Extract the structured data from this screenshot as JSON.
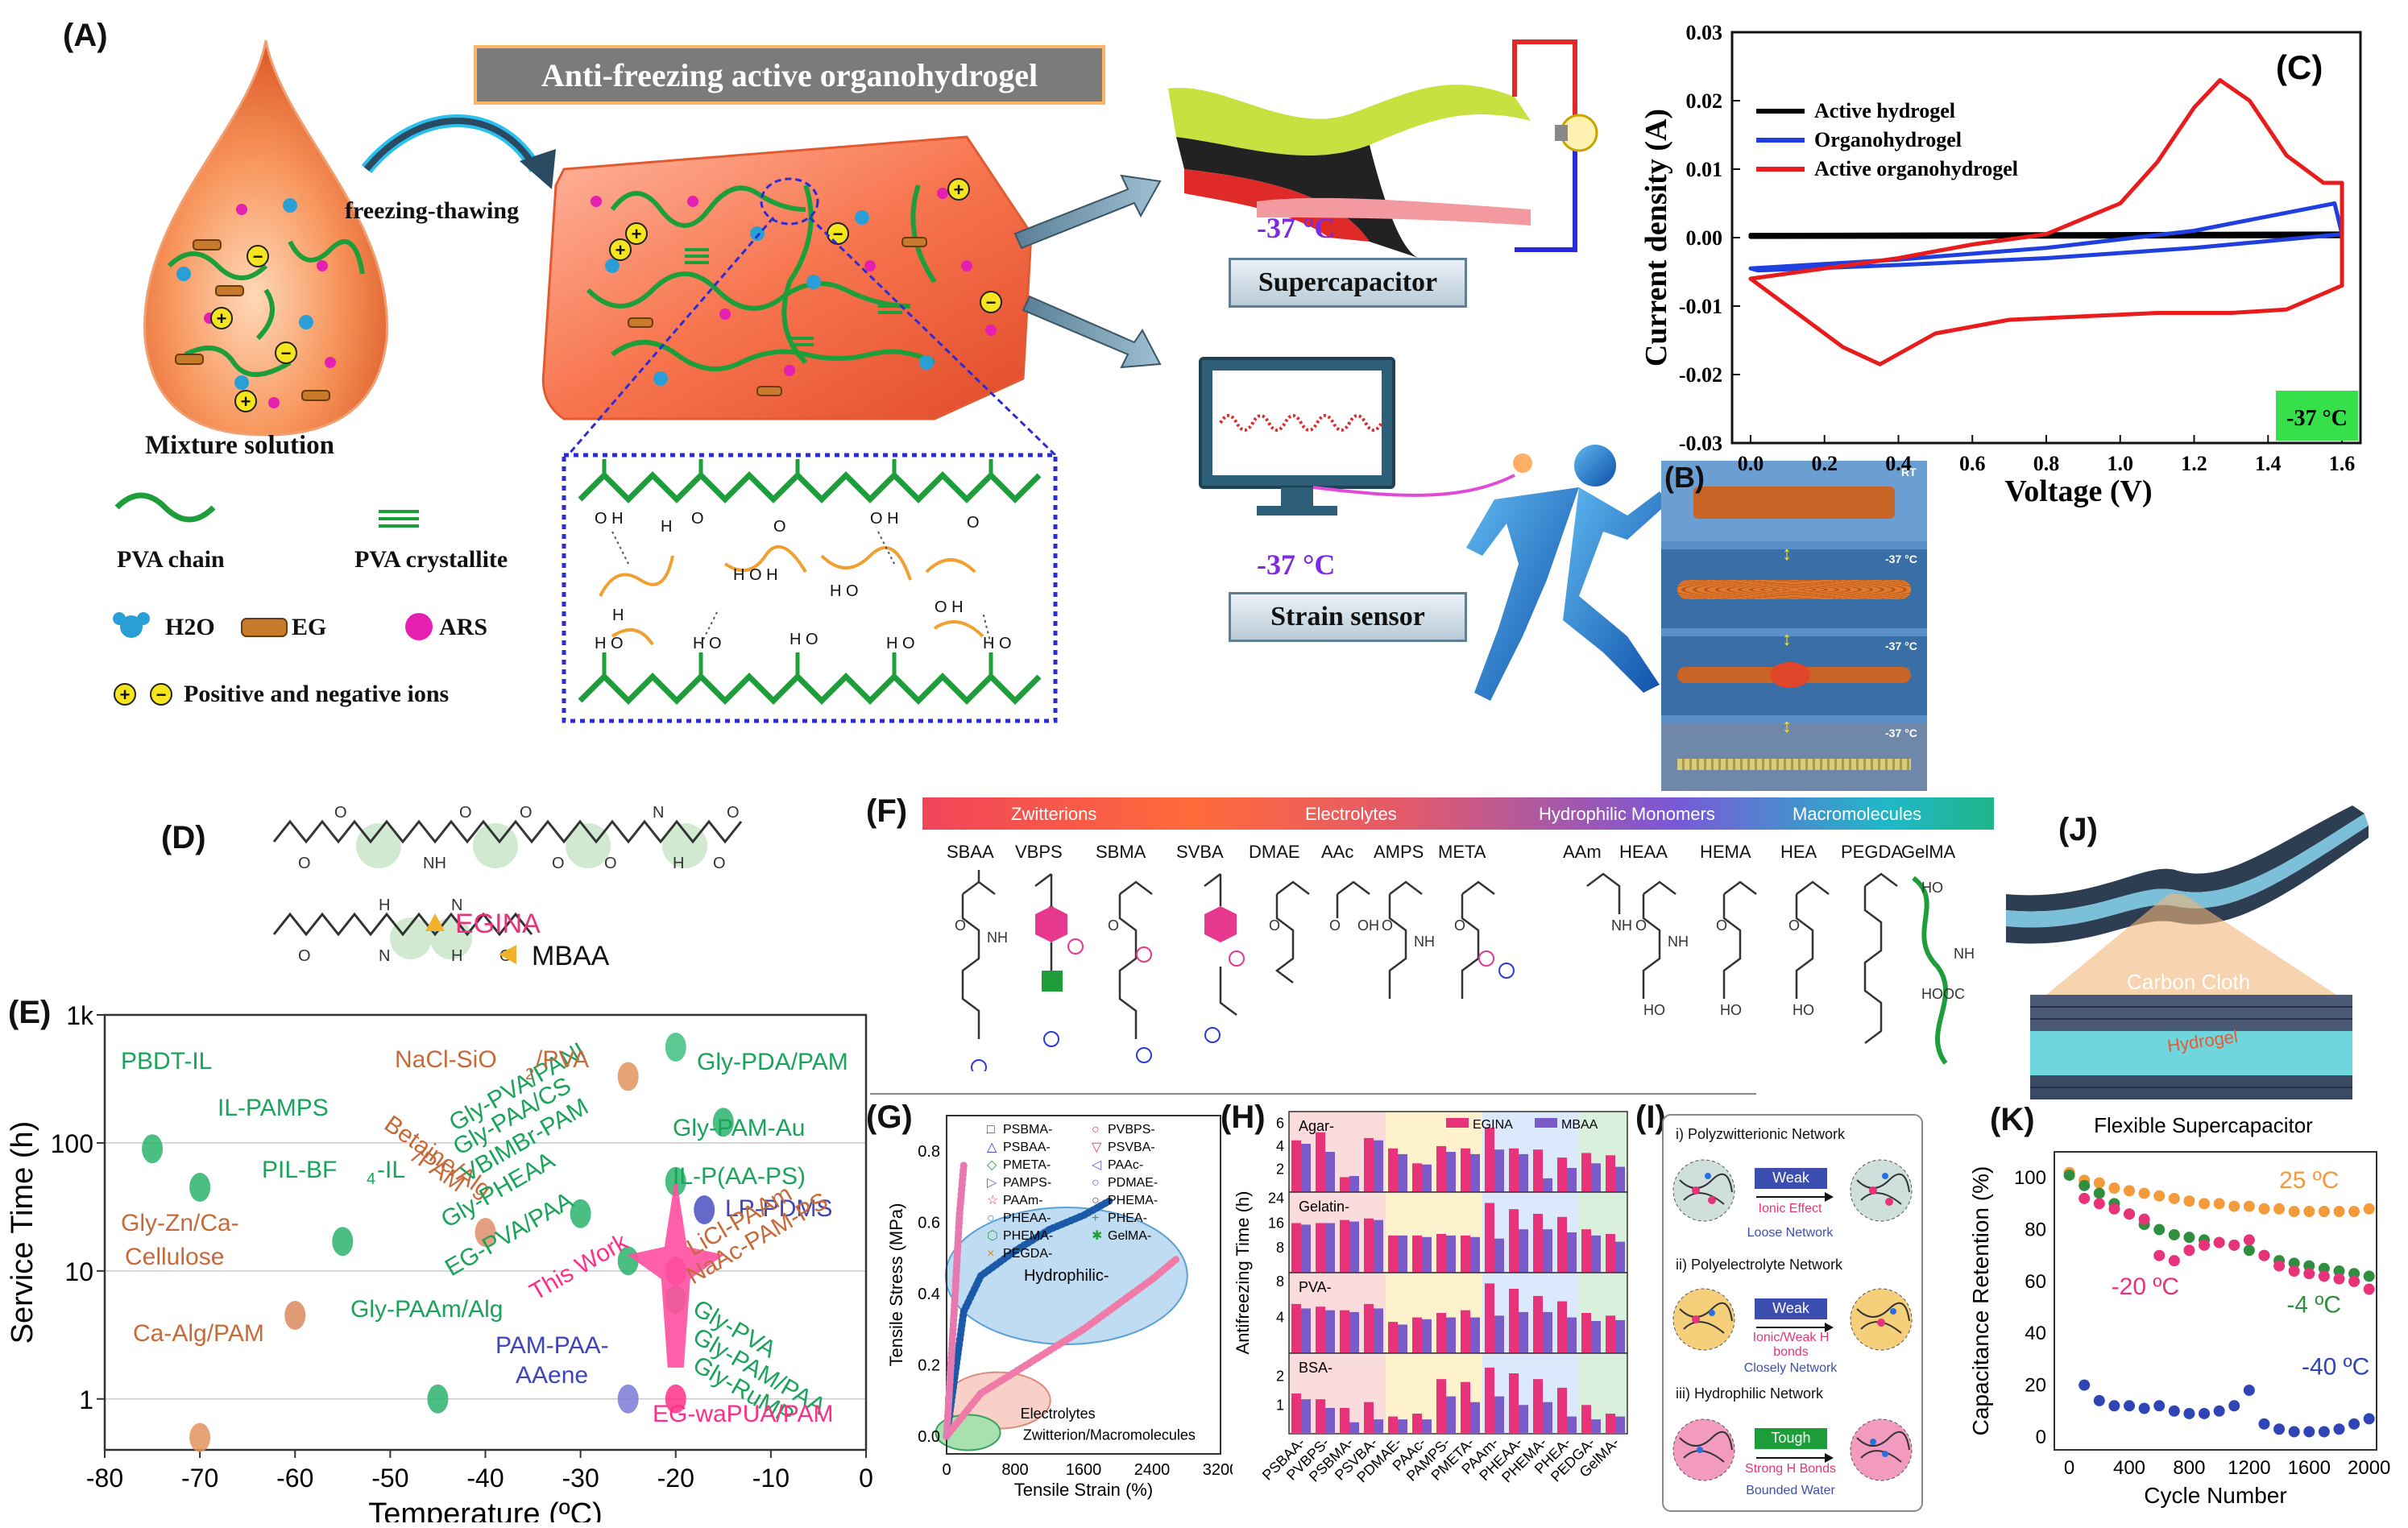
{
  "panelA": {
    "label": "(A)",
    "title": "Anti-freezing active organohydrogel",
    "arrow_text": "freezing-thawing",
    "mixture": "Mixture solution",
    "legend": {
      "pva_chain": "PVA chain",
      "pva_crystallite": "PVA crystallite",
      "h2o": "H2O",
      "eg": "EG",
      "ars": "ARS",
      "ions": "Positive and negative ions"
    },
    "temp1": "-37 °C",
    "device1": "Supercapacitor",
    "temp2": "-37 °C",
    "device2": "Strain sensor"
  },
  "panelB": {
    "label": "(B)",
    "tags": [
      "RT",
      "-37 °C",
      "-37 °C",
      "-37 °C"
    ]
  },
  "panelC": {
    "label": "(C)",
    "temp_badge": "-37 °C",
    "chart_data": {
      "type": "line",
      "xlabel": "Voltage (V)",
      "ylabel": "Current density (A)",
      "xlim": [
        -0.05,
        1.65
      ],
      "ylim": [
        -0.03,
        0.03
      ],
      "xticks": [
        "0.0",
        "0.2",
        "0.4",
        "0.6",
        "0.8",
        "1.0",
        "1.2",
        "1.4",
        "1.6"
      ],
      "yticks": [
        "0.03",
        "0.02",
        "0.01",
        "0.00",
        "-0.01",
        "-0.02",
        "-0.03"
      ],
      "legend_position": "top-left",
      "series": [
        {
          "name": "Active hydrogel",
          "color": "#000000",
          "x": [
            0,
            1.6,
            1.6,
            0
          ],
          "y": [
            0.0004,
            0.0006,
            0.0002,
            0.0001
          ]
        },
        {
          "name": "Organohydrogel",
          "color": "#1f3fe0",
          "x": [
            0,
            0.4,
            0.8,
            1.2,
            1.58,
            1.6,
            1.2,
            0.8,
            0.4,
            0.02,
            0
          ],
          "y": [
            -0.0045,
            -0.0032,
            -0.0015,
            0.001,
            0.005,
            0.0005,
            -0.0015,
            -0.003,
            -0.004,
            -0.0048,
            -0.0045
          ]
        },
        {
          "name": "Active organohydrogel",
          "color": "#e81c1c",
          "x": [
            0,
            0.2,
            0.4,
            0.6,
            0.8,
            1.0,
            1.1,
            1.2,
            1.27,
            1.35,
            1.45,
            1.55,
            1.6,
            1.6,
            1.45,
            1.3,
            1.1,
            0.9,
            0.7,
            0.5,
            0.4,
            0.35,
            0.25,
            0.1,
            0
          ],
          "y": [
            -0.006,
            -0.0045,
            -0.003,
            -0.001,
            0.0005,
            0.005,
            0.011,
            0.019,
            0.023,
            0.02,
            0.012,
            0.008,
            0.008,
            -0.007,
            -0.0105,
            -0.011,
            -0.011,
            -0.0115,
            -0.012,
            -0.014,
            -0.017,
            -0.0185,
            -0.016,
            -0.01,
            -0.006
          ]
        }
      ]
    }
  },
  "panelD": {
    "label": "(D)",
    "egina": "EGINA",
    "mbaa": "MBAA"
  },
  "panelE": {
    "label": "(E)",
    "chart_data": {
      "type": "scatter",
      "xlabel": "Temperature (ºC)",
      "ylabel": "Service Time (h)",
      "xlim": [
        -80,
        0
      ],
      "ylim": [
        0.4,
        1000
      ],
      "yscale": "log",
      "xticks": [
        "-80",
        "-70",
        "-60",
        "-50",
        "-40",
        "-30",
        "-20",
        "-10",
        "0"
      ],
      "yticks": [
        "1k",
        "100",
        "10",
        "1"
      ],
      "points": [
        {
          "label": "PBDT-IL",
          "x": -75,
          "y": 90,
          "color": "#2bb36b"
        },
        {
          "label": "IL-PAMPS",
          "x": -70,
          "y": 45,
          "color": "#2bb36b"
        },
        {
          "label": "PIL-BF4-IL",
          "x": -55,
          "y": 17,
          "color": "#2bb36b"
        },
        {
          "label": "Gly-Zn/Ca-Cellulose",
          "x": -60,
          "y": 4.5,
          "color": "#d98a5a"
        },
        {
          "label": "Ca-Alg/PAM",
          "x": -70,
          "y": 0.5,
          "color": "#e2935e"
        },
        {
          "label": "Gly-PAAm/Alg",
          "x": -45,
          "y": 1,
          "color": "#2bb36b"
        },
        {
          "label": "Betaine/Alg/PAM",
          "x": -40,
          "y": 20,
          "color": "#e08d6a"
        },
        {
          "label": "NaCl-SiO2/PVA",
          "x": -25,
          "y": 330,
          "color": "#e2935e"
        },
        {
          "label": "Gly-PDA/PAM",
          "x": -20,
          "y": 560,
          "color": "#3fbf80"
        },
        {
          "label": "Gly-PVA/PANI",
          "x": -30,
          "y": 28,
          "color": "#2bb36b"
        },
        {
          "label": "Gly-PHEAA",
          "x": -25,
          "y": 12,
          "color": "#2bb36b"
        },
        {
          "label": "EG-PVA/PAA",
          "x": -20,
          "y": 6,
          "color": "#2bb36b"
        },
        {
          "label": "Gly-PAM-Au",
          "x": -15,
          "y": 145,
          "color": "#2bb36b"
        },
        {
          "label": "IL-P(AA-PS)",
          "x": -20,
          "y": 50,
          "color": "#2bb36b"
        },
        {
          "label": "LP-PDMS",
          "x": -17,
          "y": 30,
          "color": "#4a4fbf"
        },
        {
          "label": "PAM-PAA-AAene",
          "x": -25,
          "y": 1,
          "color": "#7a7ad6"
        },
        {
          "label": "This Work",
          "x": -20,
          "y": 10,
          "color": "#ff2f88"
        },
        {
          "label": "EG-waPUA/PAM",
          "x": -20,
          "y": 1,
          "color": "#ff2f88"
        }
      ],
      "labels": [
        "PBDT-IL",
        "IL-PAMPS",
        "PIL-BF",
        "4",
        "-IL",
        "Gly-Zn/Ca-",
        "Cellulose",
        "Ca-Alg/PAM",
        "Gly-PAAm/Alg",
        "NaCl-SiO",
        "2",
        "/PVA",
        "Gly-PDA/PAM",
        "Betaine/Alg",
        "/PAM",
        "Gly-PVA/PANI",
        "Gly-PAA/CS",
        "VBIMBr-PAM",
        "Gly-PHEAA",
        "EG-PVA/PAA",
        "This Work",
        "Gly-PAM-Au",
        "IL-P(AA-PS)",
        "LP-PDMS",
        "LiCl-PAAm",
        "NaAc-PAM-PS",
        "Gly-PVA",
        "Gly-PAM/PAA",
        "Gly-RuMP",
        "PAM-PAA-",
        "AAene",
        "EG-waPUA/PAM"
      ]
    }
  },
  "panelF": {
    "label": "(F)",
    "categories": [
      "Zwitterions",
      "Electrolytes",
      "Hydrophilic Monomers",
      "Macromolecules"
    ],
    "monomers": [
      "SBAA",
      "VBPS",
      "SBMA",
      "SVBA",
      "DMAE",
      "AAc",
      "AMPS",
      "META",
      "AAm",
      "HEAA",
      "HEMA",
      "HEA",
      "PEGDA",
      "GelMA"
    ]
  },
  "panelG": {
    "label": "(G)",
    "chart_data": {
      "type": "line",
      "xlabel": "Tensile Strain (%)",
      "ylabel": "Tensile Stress (MPa)",
      "xlim": [
        0,
        3200
      ],
      "ylim": [
        -0.05,
        0.9
      ],
      "xticks": [
        "0",
        "800",
        "1600",
        "2400",
        "3200"
      ],
      "yticks": [
        "0.0",
        "0.2",
        "0.4",
        "0.6",
        "0.8"
      ],
      "legend": [
        "PSBMA-",
        "PSBAA-",
        "PMETA-",
        "PAMPS-",
        "PAAm-",
        "PHEAA-",
        "PHEMA-",
        "PEGDA-",
        "PVBPS-",
        "PSVBA-",
        "PAAc-",
        "PDMAE-",
        "PHEMA-",
        "PHEA-",
        "GelMA-"
      ],
      "regions": [
        "Hydrophilic-",
        "Electrolytes",
        "Zwitterion/Macromolecules"
      ],
      "series": [
        {
          "name": "PHEAA-",
          "color": "#1a5aa8",
          "x": [
            0,
            200,
            400,
            800,
            1200,
            1600,
            1900
          ],
          "y": [
            0,
            0.35,
            0.45,
            0.52,
            0.58,
            0.62,
            0.66
          ]
        },
        {
          "name": "PHEA-",
          "color": "#f07aa8",
          "x": [
            0,
            400,
            800,
            1200,
            1600,
            2000,
            2400,
            2700
          ],
          "y": [
            0,
            0.12,
            0.18,
            0.24,
            0.3,
            0.37,
            0.44,
            0.5
          ]
        },
        {
          "name": "PAAm-",
          "color": "#e67ab0",
          "x": [
            0,
            100,
            150,
            200
          ],
          "y": [
            0,
            0.4,
            0.62,
            0.76
          ]
        }
      ]
    }
  },
  "panelH": {
    "label": "(H)",
    "chart_data": {
      "type": "bar",
      "ylabel": "Antifreezing Time (h)",
      "legend": [
        "EGINA",
        "MBAA"
      ],
      "categories": [
        "PSBAA-",
        "PVBPS-",
        "PSBMA-",
        "PSVBA-",
        "PDMAE-",
        "PAAc-",
        "PAMPS-",
        "PMETA-",
        "PAAm-",
        "PHEAA-",
        "PHEMA-",
        "PHEA-",
        "PEDGA-",
        "GelMA-"
      ],
      "groups": [
        {
          "name": "Agar-",
          "ylim": [
            0,
            7
          ],
          "yticks": [
            "6",
            "4",
            "2"
          ],
          "egina": [
            4.5,
            5.2,
            1.3,
            4.7,
            3.8,
            2.5,
            4.0,
            3.8,
            5.6,
            3.8,
            3.7,
            3.0,
            3.4,
            3.2
          ],
          "mbaa": [
            4.2,
            3.5,
            1.4,
            4.5,
            3.3,
            2.4,
            3.5,
            3.3,
            3.7,
            3.3,
            1.2,
            2.1,
            2.5,
            2.2
          ]
        },
        {
          "name": "Gelatin-",
          "ylim": [
            0,
            26
          ],
          "yticks": [
            "24",
            "16",
            "8"
          ],
          "egina": [
            16,
            16,
            17,
            17.5,
            12,
            12,
            12.5,
            12,
            22.5,
            20.5,
            19,
            18,
            14,
            12.5
          ],
          "mbaa": [
            15.5,
            16,
            16.5,
            17,
            12,
            11.5,
            12,
            11.5,
            11,
            14,
            14,
            13,
            12,
            10
          ]
        },
        {
          "name": "PVA-",
          "ylim": [
            0,
            9
          ],
          "yticks": [
            "8",
            "4"
          ],
          "egina": [
            5.5,
            5.2,
            4.8,
            5.5,
            3.5,
            4.0,
            4.5,
            4.8,
            7.8,
            7.2,
            6.4,
            5.8,
            4.5,
            4.2
          ],
          "mbaa": [
            5.0,
            4.8,
            4.6,
            5.0,
            3.2,
            3.8,
            4.0,
            4.0,
            4.2,
            4.6,
            4.6,
            4.0,
            3.6,
            3.7
          ]
        },
        {
          "name": "BSA-",
          "ylim": [
            0,
            2.8
          ],
          "yticks": [
            "2",
            "1"
          ],
          "egina": [
            1.4,
            1.2,
            0.9,
            1.1,
            0.6,
            0.7,
            1.9,
            1.8,
            2.3,
            2.1,
            1.9,
            1.6,
            1.0,
            0.7
          ],
          "mbaa": [
            1.2,
            0.9,
            0.4,
            0.5,
            0.5,
            0.5,
            1.3,
            1.1,
            1.3,
            1.0,
            1.1,
            0.6,
            0.5,
            0.6
          ]
        }
      ]
    }
  },
  "panelI": {
    "label": "(I)",
    "net1": {
      "title": "i) Polyzwitterionic Network",
      "badge": "Weak",
      "effect": "Ionic Effect",
      "result": "Loose Network"
    },
    "net2": {
      "title": "ii) Polyelectrolyte Network",
      "badge": "Weak",
      "effect": "Ionic/Weak H",
      "effect2": "bonds",
      "result": "Closely Network"
    },
    "net3": {
      "title": "iii) Hydrophilic Network",
      "badge": "Tough",
      "effect": "Strong H Bonds",
      "result": "Bounded Water"
    }
  },
  "panelJ": {
    "label": "(J)",
    "cloth": "Carbon Cloth",
    "gel": "Hydrogel"
  },
  "panelK": {
    "label": "(K)",
    "chart_data": {
      "type": "scatter",
      "title": "Flexible Supercapacitor",
      "xlabel": "Cycle Number",
      "ylabel": "Capacitance Retention (%)",
      "xlim": [
        -100,
        2050
      ],
      "ylim": [
        -5,
        110
      ],
      "xticks": [
        "0",
        "400",
        "800",
        "1200",
        "1600",
        "2000"
      ],
      "yticks": [
        "100",
        "80",
        "60",
        "40",
        "20",
        "0"
      ],
      "series": [
        {
          "name": "25 ºC",
          "color": "#f39a3a",
          "x": [
            0,
            100,
            200,
            300,
            400,
            500,
            600,
            700,
            800,
            900,
            1000,
            1100,
            1200,
            1300,
            1400,
            1500,
            1600,
            1700,
            1800,
            1900,
            2000
          ],
          "y": [
            102,
            99,
            98,
            96,
            95,
            94,
            93,
            92,
            91,
            90,
            90,
            89,
            89,
            88,
            88,
            87,
            87,
            87,
            87,
            87,
            88
          ]
        },
        {
          "name": "-4 ºC",
          "color": "#2f8f3f",
          "x": [
            0,
            100,
            200,
            300,
            400,
            500,
            600,
            700,
            800,
            900,
            1000,
            1100,
            1200,
            1300,
            1400,
            1500,
            1600,
            1700,
            1800,
            1900,
            2000
          ],
          "y": [
            101,
            97,
            94,
            90,
            86,
            82,
            80,
            78,
            77,
            76,
            75,
            74,
            72,
            70,
            68,
            67,
            66,
            65,
            64,
            63,
            62
          ]
        },
        {
          "name": "-20 ºC",
          "color": "#e8337a",
          "x": [
            100,
            200,
            300,
            400,
            500,
            600,
            700,
            800,
            900,
            1000,
            1100,
            1200,
            1300,
            1400,
            1500,
            1600,
            1700,
            1800,
            1900,
            2000
          ],
          "y": [
            92,
            90,
            88,
            86,
            84,
            70,
            68,
            72,
            74,
            75,
            74,
            76,
            70,
            66,
            64,
            63,
            62,
            61,
            60,
            57
          ]
        },
        {
          "name": "-40 ºC",
          "color": "#2f45b5",
          "x": [
            100,
            200,
            300,
            400,
            500,
            600,
            700,
            800,
            900,
            1000,
            1100,
            1200,
            1300,
            1400,
            1500,
            1600,
            1700,
            1800,
            1900,
            2000
          ],
          "y": [
            20,
            14,
            12,
            12,
            11,
            12,
            10,
            9,
            9,
            10,
            12,
            18,
            5,
            3,
            2,
            2,
            2,
            3,
            5,
            7
          ]
        }
      ],
      "series_labels": [
        "25 ºC",
        "-4 ºC",
        "-20 ºC",
        "-40 ºC"
      ]
    }
  }
}
